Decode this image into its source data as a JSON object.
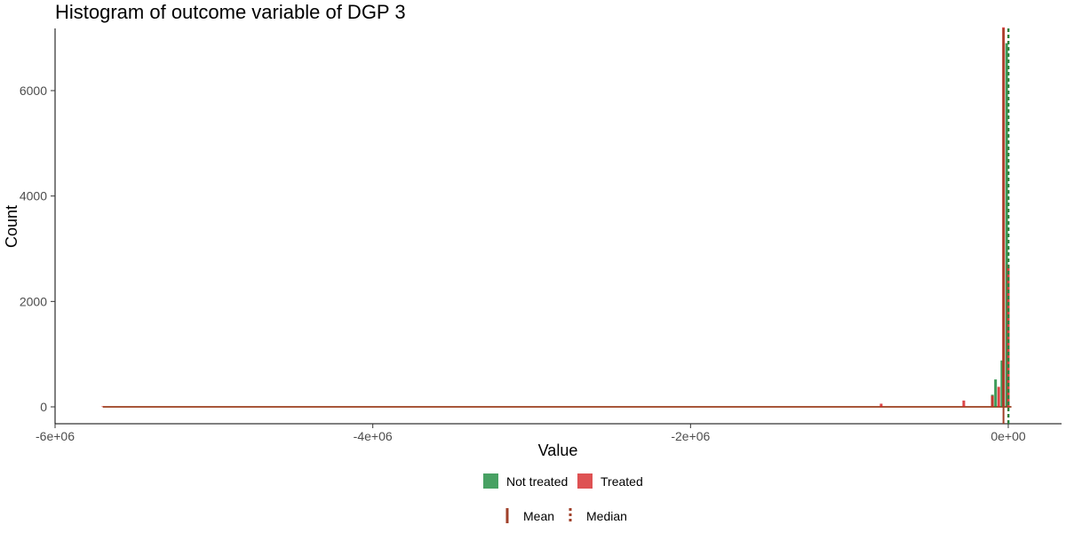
{
  "chart_data": {
    "type": "bar",
    "title": "Histogram of outcome variable of DGP 3",
    "xlabel": "Value",
    "ylabel": "Count",
    "xlim": [
      -6000000,
      160000
    ],
    "ylim": [
      0,
      7200
    ],
    "x_ticks": [
      {
        "value": -6000000,
        "label": "-6e+06"
      },
      {
        "value": -4000000,
        "label": "-4e+06"
      },
      {
        "value": -2000000,
        "label": "-2e+06"
      },
      {
        "value": 0,
        "label": "0e+00"
      }
    ],
    "y_ticks": [
      {
        "value": 0,
        "label": "0"
      },
      {
        "value": 2000,
        "label": "2000"
      },
      {
        "value": 4000,
        "label": "4000"
      },
      {
        "value": 6000,
        "label": "6000"
      }
    ],
    "grid": false,
    "legend_position": "bottom",
    "series": [
      {
        "name": "Not treated",
        "color": "#1a8a3c",
        "bins": [
          {
            "x": -80000,
            "count": 520
          },
          {
            "x": -40000,
            "count": 880
          },
          {
            "x": -10000,
            "count": 6900
          },
          {
            "x": -100000,
            "count": 230
          }
        ]
      },
      {
        "name": "Treated",
        "color": "#d62728",
        "bins": [
          {
            "x": -5700000,
            "count": 8
          },
          {
            "x": -800000,
            "count": 60
          },
          {
            "x": -280000,
            "count": 120
          },
          {
            "x": -100000,
            "count": 210
          },
          {
            "x": -60000,
            "count": 380
          },
          {
            "x": -30000,
            "count": 7200
          },
          {
            "x": 0,
            "count": 2700
          }
        ]
      }
    ],
    "reference_lines": [
      {
        "name": "Mean",
        "style": "solid",
        "color": "#a0402a",
        "x": -30000
      },
      {
        "name": "Median",
        "style": "dashed",
        "color": "#a0402a",
        "x": 0
      },
      {
        "name": "Median",
        "style": "dashed",
        "color": "#1a8a3c",
        "x": 2000
      }
    ],
    "legend_fill": [
      {
        "label": "Not treated",
        "color": "#1a8a3c"
      },
      {
        "label": "Treated",
        "color": "#d62728"
      }
    ],
    "legend_lines": [
      {
        "label": "Mean",
        "style": "solid",
        "color": "#a0402a"
      },
      {
        "label": "Median",
        "style": "dashed",
        "color": "#a0402a"
      }
    ]
  }
}
